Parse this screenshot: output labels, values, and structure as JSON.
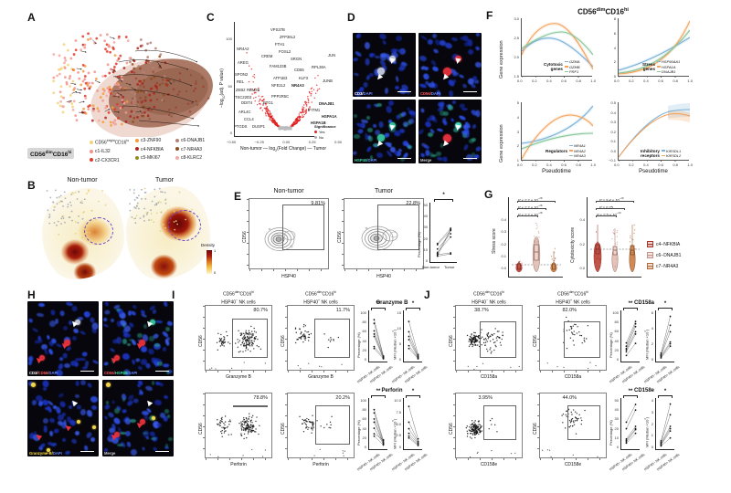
{
  "cell": {
    "b1": "CD56",
    "s1": "dim",
    "b2": "CD16",
    "s2": "hi"
  },
  "hsp": {
    "base": "HSP40",
    "neg": "−",
    "pos": "+",
    "rest": " NK cells"
  },
  "paired_x": {
    "neg": "HSP40− NK cells",
    "pos": "HSP40+ NK cells"
  },
  "panelA": {
    "label": "A",
    "legend_first": {
      "b1": "CD56",
      "s1": "bright",
      "b2": "CD16",
      "s2": "lo",
      "color": "#f2d478"
    },
    "legend": [
      {
        "label": "c1-IL32",
        "color": "#f2938a"
      },
      {
        "label": "c2-CX3CR1",
        "color": "#e03a28"
      },
      {
        "label": "c3-ZNF90",
        "color": "#f59b3c"
      },
      {
        "label": "c4-NFKBIA",
        "color": "#ad2520"
      },
      {
        "label": "c5-MKI67",
        "color": "#968a20"
      },
      {
        "label": "c6-DNAJB1",
        "color": "#b58377"
      },
      {
        "label": "c7-NR4A3",
        "color": "#8f4d1e"
      },
      {
        "label": "c8-KLRC2",
        "color": "#f2aaa4"
      }
    ]
  },
  "panelB": {
    "label": "B",
    "left_title": "Non-tumor",
    "right_title": "Tumor",
    "colorbar": {
      "title": "Density",
      "max": "1",
      "min": "0"
    }
  },
  "panelC": {
    "label": "C",
    "ylabel": {
      "pre": "−log",
      "sub": "10",
      "post": "(adj. P value)"
    },
    "xlabel": {
      "left": "Non-tumor —",
      "pre": "log",
      "sub": "2",
      "mid": "(Fold Change)",
      "right": "— Tumor"
    },
    "yticks": [
      "100",
      "50",
      "0"
    ],
    "xticks": [
      "−0.50",
      "−0.25",
      "0.00",
      "0.25",
      "0.50"
    ],
    "genes": [
      "VPS37B",
      "ZFP36L2",
      "FTH1",
      "NR4A2",
      "FOSL2",
      "CREM",
      "SRGN",
      "AREG",
      "FAM133B",
      "CD55",
      "SPON2",
      "ATP1B3",
      "KLF3",
      "REL",
      "NFE2L2",
      "NR4A3",
      "ZEB2",
      "RBM39",
      "TSC22D3",
      "PPP2R5C",
      "DDIT4",
      "BTG1",
      "ARL4C",
      "CCL4",
      "PTGDS",
      "DUSP1",
      "JUN",
      "RPL36A",
      "JUNB",
      "DNAJB1",
      "IFITM1",
      "HSPA1A",
      "HSPA1B"
    ],
    "legend": {
      "title": "Significance",
      "yes": "Yes",
      "no": "No",
      "yes_color": "#e02020",
      "no_color": "#aaaaaa"
    }
  },
  "panelD": {
    "label": "D",
    "img1": {
      "p1": "CD3/",
      "p2": "DAPI"
    },
    "img2": {
      "p1": "CD56/",
      "p2": "DAPI"
    },
    "img3": {
      "p1": "HSP40/",
      "p2": "DAPI"
    },
    "img4": {
      "label": "Merge"
    }
  },
  "panelE": {
    "label": "E",
    "left_title": "Non-tumor",
    "right_title": "Tumor",
    "left_pct": "9.81%",
    "right_pct": "22.8%",
    "yaxis": "CD56",
    "xaxis": "HSP40",
    "paired": {
      "ylabel": "Percentage (%)",
      "yticks": [
        "50",
        "40",
        "30",
        "20",
        "10",
        "0"
      ],
      "sig": "*",
      "x1": "Non-tumor",
      "x2": "Tumor"
    }
  },
  "panelF": {
    "label": "F",
    "ylabel": "Gene expression",
    "xlabel": "Pseudotime",
    "xticks": [
      "0.0",
      "0.2",
      "0.4",
      "0.6",
      "0.8",
      "1.0"
    ],
    "cytotoxic": {
      "t1": "Cytotoxic",
      "t2": "genes",
      "genes": [
        "GZMA",
        "GZMB",
        "PRF1"
      ],
      "colors": [
        "#7bb1d8",
        "#f5a25a",
        "#86c69a"
      ],
      "yticks": [
        "3.0",
        "2.5",
        "2.0",
        "1.5"
      ]
    },
    "stress": {
      "t1": "Stress",
      "t2": "genes",
      "genes": [
        "HSP90AA1",
        "HSPA1A",
        "DNAJB1"
      ],
      "colors": [
        "#7bb1d8",
        "#f5a25a",
        "#86c69a"
      ],
      "yticks": [
        "8",
        "6",
        "4",
        "2",
        "0"
      ]
    },
    "regulators": {
      "t1": "Regulators",
      "t2": "",
      "genes": [
        "NR4A1",
        "NR4A2",
        "NR4A3"
      ],
      "colors": [
        "#7bb1d8",
        "#f5a25a",
        "#86c69a"
      ],
      "yticks": [
        "5",
        "4",
        "3",
        "2",
        "1"
      ]
    },
    "inhibitory": {
      "t1": "Inhibitory",
      "t2": "receptors",
      "genes": [
        "KIR3DL1",
        "KIR3DL2"
      ],
      "colors": [
        "#7bb1d8",
        "#f5a25a"
      ],
      "yticks": [
        "0.5",
        "0.4",
        "0.3",
        "0.2",
        "0.1",
        "0.0",
        "−0.1"
      ]
    }
  },
  "panelG": {
    "label": "G",
    "left": {
      "ylabel": "Stress score",
      "yticks": [
        "0.4",
        "0.3",
        "0.2",
        "0.1",
        "0.0"
      ],
      "p": [
        {
          "b": "P < 2.2 × 10",
          "s": "−16"
        },
        {
          "b": "P < 2.2 × 10",
          "s": "−16"
        },
        {
          "b": "P < 2.2 × 10",
          "s": "−16"
        }
      ]
    },
    "right": {
      "ylabel": "Cytotoxicity score",
      "yticks": [
        "0.4",
        "0.2",
        "0.0"
      ],
      "p": [
        {
          "b": "P = 9.4 × 10",
          "s": "−10"
        },
        {
          "b": "P = 0.75",
          "s": ""
        },
        {
          "b": "P < 2.5 × 10",
          "s": "−13"
        }
      ]
    },
    "legend": [
      {
        "label": "c4−NFKBIA",
        "color": "#a8352b"
      },
      {
        "label": "c6−DNAJB1",
        "color": "#c49287"
      },
      {
        "label": "c7−NR4A3",
        "color": "#b56b3a"
      }
    ]
  },
  "panelH": {
    "label": "H",
    "img1": {
      "p1": "CD3/",
      "p2": "CD56/",
      "p3": "DAPI"
    },
    "img2": {
      "p1": "CD56/",
      "p2": "HSP40/",
      "p3": "DAPI"
    },
    "img3": {
      "p1": "Granzyme-B/",
      "p2": "DAPI"
    },
    "img4": {
      "label": "Merge"
    }
  },
  "panelI": {
    "label": "I",
    "yaxis": "CD56",
    "pct_label": "Percentage (%)",
    "row1": {
      "pct1": "80.7%",
      "pct2": "11.7%",
      "xaxis": "Granzyme B",
      "title": "Granzyme B",
      "pct_ticks": [
        "100",
        "80",
        "60",
        "40",
        "20",
        "0"
      ],
      "sig_pct": "**",
      "sig_mfi": "*",
      "mfi_label": {
        "b": "MFI (Median ×10",
        "s": "3",
        "e": ")"
      },
      "mfi_ticks": [
        "15",
        "10",
        "5",
        "0"
      ]
    },
    "row2": {
      "pct1": "78.8%",
      "pct2": "20.2%",
      "xaxis": "Perforin",
      "title": "Perforin",
      "pct_ticks": [
        "100",
        "80",
        "60",
        "40",
        "20",
        "0"
      ],
      "sig_pct": "**",
      "sig_mfi": "*",
      "mfi_label": {
        "b": "MFI (Median ×10",
        "s": "5",
        "e": ")"
      },
      "mfi_ticks": [
        "10.0",
        "7.5",
        "5.0",
        "2.5",
        "0"
      ]
    }
  },
  "panelJ": {
    "label": "J",
    "yaxis": "CD56",
    "pct_label": "Percentage (%)",
    "row1": {
      "pct1": "38.7%",
      "pct2": "82.0%",
      "xaxis": "CD158a",
      "title": "CD158a",
      "pct_ticks": [
        "100",
        "80",
        "60",
        "40",
        "20",
        "0"
      ],
      "sig_pct": "**",
      "sig_mfi": "*",
      "mfi_label": {
        "b": "MFI (Median ×10",
        "s": "2",
        "e": ")"
      },
      "mfi_ticks": [
        "6",
        "4",
        "2",
        "0"
      ]
    },
    "row2": {
      "pct1": "3.95%",
      "pct2": "44.0%",
      "xaxis": "CD158e",
      "title": "CD158e",
      "pct_ticks": [
        "50",
        "40",
        "30",
        "20",
        "10",
        "0"
      ],
      "sig_pct": "**",
      "sig_mfi": "*",
      "mfi_label": {
        "b": "MFI (Median ×10",
        "s": "2",
        "e": ")"
      },
      "mfi_ticks": [
        "4",
        "3",
        "2",
        "1",
        "0"
      ]
    }
  }
}
